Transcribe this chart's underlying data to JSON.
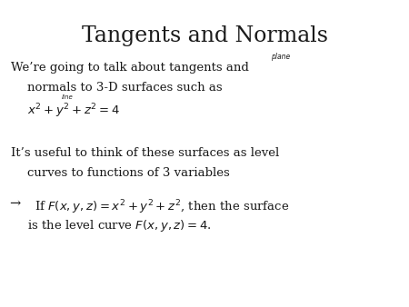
{
  "title": "Tangents and Normals",
  "title_fontsize": 17,
  "title_font": "serif",
  "bg_color": "#ffffff",
  "text_color": "#1a1a1a",
  "body_fontsize": 9.5,
  "body_font": "serif",
  "annotation_plane": "plane",
  "annotation_line": "line",
  "para1_line1": "We’re going to talk about tangents and",
  "para1_line2": "normals to 3-D surfaces such as",
  "para1_line3": "$x^2 + y^2 + z^2 = 4$",
  "para2_line1": "It’s useful to think of these surfaces as level",
  "para2_line2": "curves to functions of 3 variables",
  "para3_line1": "If $F(x,y,z) = x^2 + y^2 + z^2$, then the surface",
  "para3_line2": "is the level curve $F(x,y,z) = 4$.",
  "arrow_bullet": "→"
}
